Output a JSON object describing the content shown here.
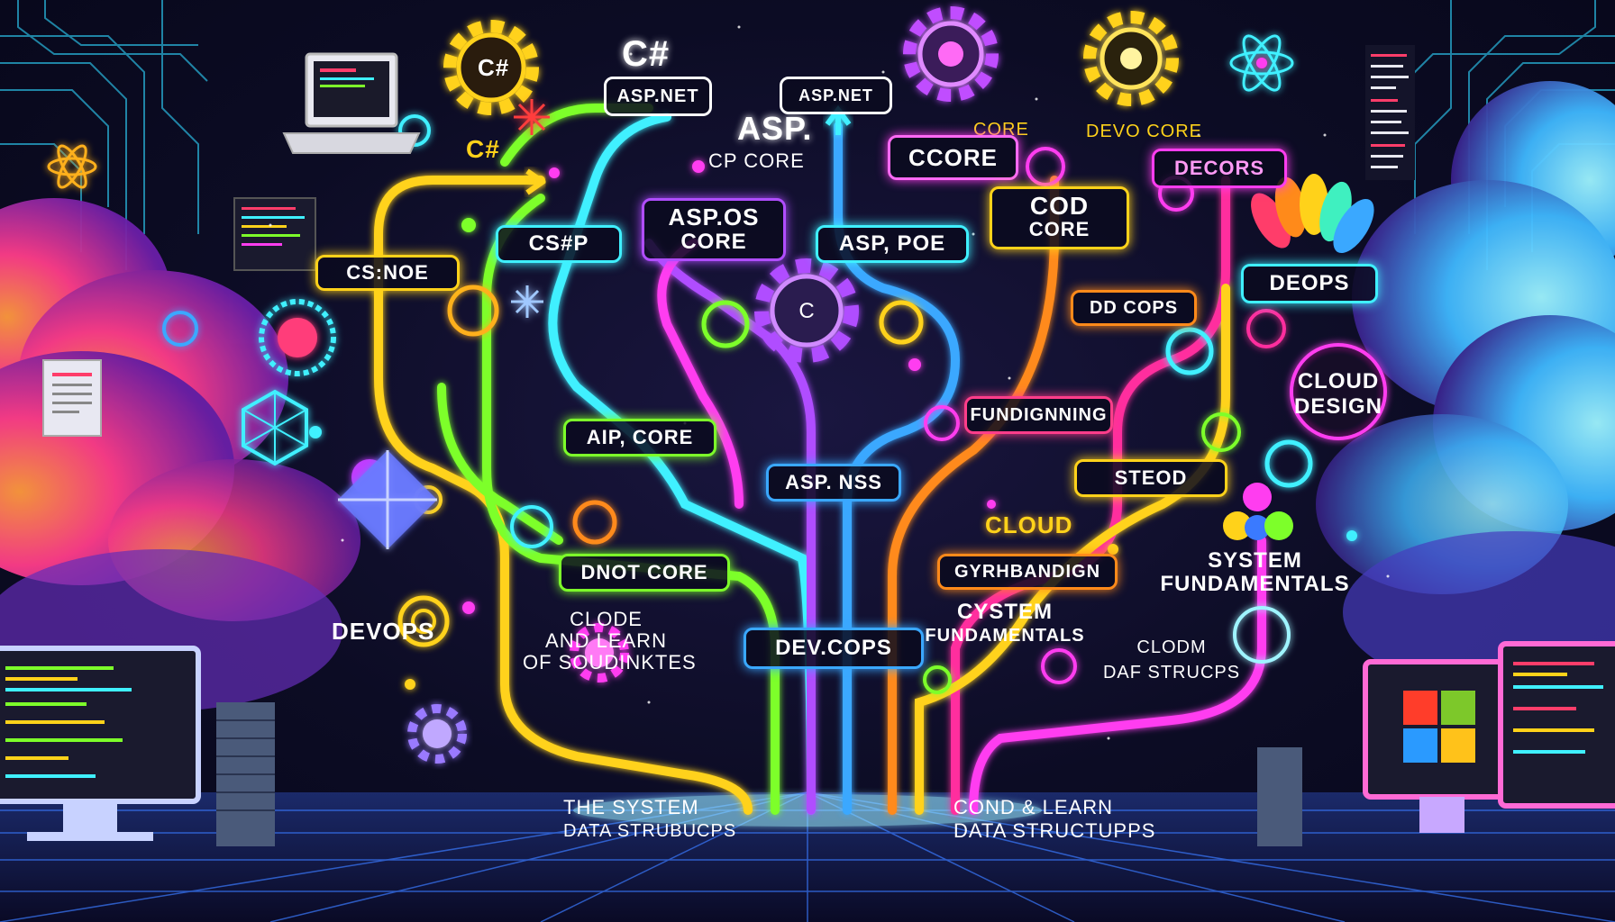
{
  "labels": {
    "csharp_top": "C#",
    "aspnet_top": "ASP.NET",
    "aspnet_top2": "ASP.NET",
    "asp_big": "ASP.",
    "cp_core": "CP CORE",
    "core_small": "CORE",
    "devo_core": "DEVO CORE",
    "csharp_logo_label": "C#",
    "ccore": "CCORE",
    "decors": "DECORS",
    "cod_core_1": "COD",
    "cod_core_2": "CORE",
    "aspos_core_1": "ASP.OS",
    "aspos_core_2": "CORE",
    "csp": "CS#P",
    "asp_poe": "ASP, POE",
    "cs_noe": "CS:NOE",
    "deops": "DEOPS",
    "dd_cops": "DD COPS",
    "cloud_design_1": "CLOUD",
    "cloud_design_2": "DESIGN",
    "fundignning": "FUNDIGNNING",
    "aip_core": "AIP, CORE",
    "asp_nss": "ASP. NSS",
    "steod": "STEOD",
    "cloud": "CLOUD",
    "system_fund_r1": "SYSTEM",
    "system_fund_r2": "FUNDAMENTALS",
    "gyrhbandign": "GYRHBANDIGN",
    "dnot_core": "DNOT CORE",
    "devops_left": "DEVOPS",
    "clode_1": "CLODE",
    "clode_2": "AND LEARN",
    "clode_3": "OF SOUDINKTES",
    "devcops": "DEV.COPS",
    "cystem_1": "CYSTEM",
    "cystem_2": "FUNDAMENTALS",
    "clodm_1": "CLODM",
    "clodm_2": "DAF STRUCPS",
    "the_system_1": "THE SYSTEM",
    "the_system_2": "DATA STRUBUCPS",
    "cond_learn_1": "COND & LEARN",
    "cond_learn_2": "DATA STRUCTUPPS"
  },
  "colors": {
    "yellow": "#ffd21a",
    "green": "#7dff2a",
    "cyan": "#3ff0ff",
    "magenta": "#ff3df0",
    "purple": "#b04dff",
    "orange": "#ff8a1a",
    "pink": "#ff2f9e",
    "blue": "#3aa8ff",
    "white": "#ffffff"
  }
}
